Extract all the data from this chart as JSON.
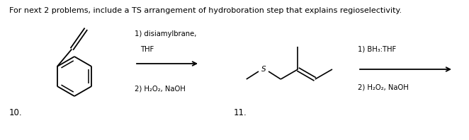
{
  "background_color": "#ffffff",
  "header_text": "For next 2 problems, include a TS arrangement of hydroboration step that explains regioselectivity.",
  "header_fontsize": 8.0,
  "problem10_label": "10.",
  "problem11_label": "11.",
  "reagent10_line1": "1) disiamylbrane,",
  "reagent10_line2": "    THF",
  "reagent10_line3": "2) H₂O₂, NaOH",
  "reagent11_line1": "1) BH₃:THF",
  "reagent11_line2": "2) H₂O₂, NaOH",
  "fontsize_reagent": 7.2,
  "fontsize_label": 8.5,
  "fontsize_S": 7.5,
  "fig_w": 6.62,
  "fig_h": 1.98
}
